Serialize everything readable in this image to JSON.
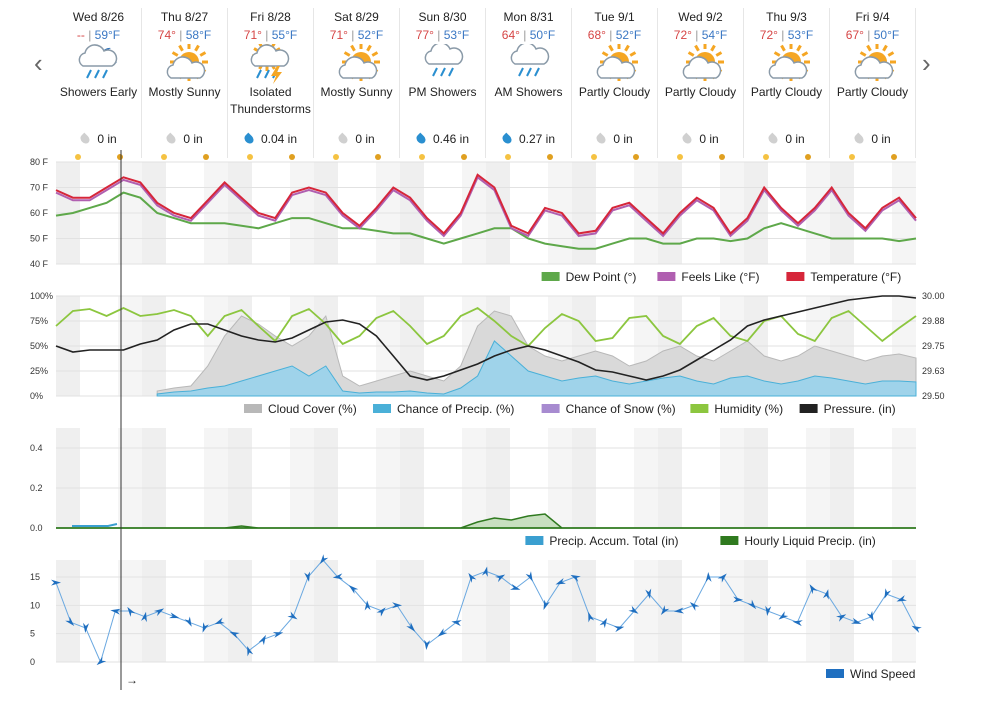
{
  "nav": {
    "prev_icon": "chevron-left-icon",
    "next_icon": "chevron-right-icon"
  },
  "days": [
    {
      "date": "Wed 8/26",
      "hi": "--",
      "lo": "59°F",
      "cond": "Showers Early",
      "icon": "cloud-moon-rain-icon",
      "precip": "0 in",
      "drop": "gray"
    },
    {
      "date": "Thu 8/27",
      "hi": "74°",
      "lo": "58°F",
      "cond": "Mostly Sunny",
      "icon": "sun-cloud-icon",
      "precip": "0 in",
      "drop": "gray"
    },
    {
      "date": "Fri 8/28",
      "hi": "71°",
      "lo": "55°F",
      "cond": "Isolated Thunderstorms",
      "icon": "thunderstorm-icon",
      "precip": "0.04 in",
      "drop": "blue"
    },
    {
      "date": "Sat 8/29",
      "hi": "71°",
      "lo": "52°F",
      "cond": "Mostly Sunny",
      "icon": "sun-cloud-icon",
      "precip": "0 in",
      "drop": "gray"
    },
    {
      "date": "Sun 8/30",
      "hi": "77°",
      "lo": "53°F",
      "cond": "PM Showers",
      "icon": "rain-cloud-icon",
      "precip": "0.46 in",
      "drop": "blue"
    },
    {
      "date": "Mon 8/31",
      "hi": "64°",
      "lo": "50°F",
      "cond": "AM Showers",
      "icon": "rain-cloud-icon",
      "precip": "0.27 in",
      "drop": "blue"
    },
    {
      "date": "Tue 9/1",
      "hi": "68°",
      "lo": "52°F",
      "cond": "Partly Cloudy",
      "icon": "sun-cloud-icon",
      "precip": "0 in",
      "drop": "gray"
    },
    {
      "date": "Wed 9/2",
      "hi": "72°",
      "lo": "54°F",
      "cond": "Partly Cloudy",
      "icon": "sun-cloud-icon",
      "precip": "0 in",
      "drop": "gray"
    },
    {
      "date": "Thu 9/3",
      "hi": "72°",
      "lo": "53°F",
      "cond": "Partly Cloudy",
      "icon": "sun-cloud-icon",
      "precip": "0 in",
      "drop": "gray"
    },
    {
      "date": "Fri 9/4",
      "hi": "67°",
      "lo": "50°F",
      "cond": "Partly Cloudy",
      "icon": "sun-cloud-icon",
      "precip": "0 in",
      "drop": "gray"
    }
  ],
  "colors": {
    "dewpoint": "#5ea84a",
    "feels": "#b05fb0",
    "temp": "#d6263a",
    "cloud": "#b8b8b8",
    "precip_chance": "#4ab0d8",
    "snow": "#a78bd0",
    "humidity": "#8cc63f",
    "pressure": "#222222",
    "accum": "#3a9fd0",
    "hourly": "#2f7a1f",
    "wind": "#1f6fc0"
  },
  "chart_data": [
    {
      "type": "line",
      "ylim": [
        40,
        80
      ],
      "yticks": [
        "40 F",
        "50 F",
        "60 F",
        "70 F",
        "80 F"
      ],
      "legend": [
        "Dew Point (°)",
        "Feels Like (°F)",
        "Temperature (°F)"
      ],
      "series": [
        {
          "name": "Temperature (°F)",
          "values": [
            69,
            66,
            66,
            70,
            74,
            72,
            64,
            60,
            58,
            65,
            72,
            66,
            60,
            58,
            68,
            70,
            68,
            60,
            55,
            62,
            70,
            66,
            58,
            52,
            60,
            75,
            70,
            55,
            52,
            62,
            60,
            52,
            53,
            62,
            64,
            58,
            52,
            60,
            66,
            62,
            52,
            58,
            70,
            62,
            56,
            62,
            70,
            60,
            54,
            62,
            66,
            58
          ]
        },
        {
          "name": "Feels Like (°F)",
          "values": [
            68,
            65,
            65,
            69,
            73,
            71,
            63,
            59,
            57,
            64,
            71,
            65,
            59,
            57,
            67,
            69,
            67,
            59,
            54,
            61,
            69,
            65,
            57,
            51,
            59,
            74,
            69,
            54,
            51,
            61,
            59,
            51,
            52,
            61,
            63,
            57,
            51,
            59,
            65,
            61,
            51,
            57,
            69,
            61,
            55,
            61,
            69,
            59,
            53,
            61,
            65,
            57
          ]
        },
        {
          "name": "Dew Point (°)",
          "values": [
            59,
            60,
            62,
            64,
            68,
            66,
            60,
            58,
            56,
            56,
            56,
            55,
            54,
            56,
            58,
            58,
            56,
            54,
            54,
            53,
            52,
            52,
            50,
            48,
            50,
            52,
            54,
            54,
            50,
            48,
            47,
            46,
            46,
            48,
            50,
            50,
            48,
            48,
            50,
            50,
            49,
            50,
            54,
            56,
            54,
            52,
            50,
            50,
            50,
            50,
            49,
            50
          ]
        }
      ]
    },
    {
      "type": "area",
      "ylim": [
        0,
        100
      ],
      "yticks": [
        "0%",
        "25%",
        "50%",
        "75%",
        "100%"
      ],
      "y2ticks": [
        "29.50",
        "29.63",
        "29.75",
        "29.88",
        "30.00"
      ],
      "legend": [
        "Cloud Cover (%)",
        "Chance of Precip. (%)",
        "Chance of Snow (%)",
        "Humidity (%)",
        "Pressure. (in)"
      ],
      "series": [
        {
          "name": "Cloud Cover (%)",
          "values": [
            null,
            null,
            null,
            null,
            null,
            null,
            5,
            8,
            10,
            30,
            60,
            80,
            72,
            60,
            50,
            60,
            80,
            20,
            10,
            15,
            20,
            25,
            20,
            15,
            30,
            70,
            85,
            80,
            50,
            40,
            35,
            40,
            45,
            40,
            30,
            35,
            45,
            50,
            40,
            35,
            45,
            55,
            40,
            35,
            40,
            50,
            45,
            40,
            35,
            40,
            42,
            38
          ]
        },
        {
          "name": "Chance of Precip. (%)",
          "values": [
            null,
            null,
            null,
            null,
            null,
            null,
            2,
            4,
            5,
            8,
            10,
            15,
            20,
            25,
            30,
            20,
            30,
            5,
            3,
            4,
            4,
            5,
            3,
            2,
            8,
            20,
            55,
            40,
            25,
            20,
            15,
            18,
            20,
            15,
            12,
            15,
            18,
            20,
            15,
            12,
            18,
            20,
            15,
            12,
            15,
            20,
            18,
            15,
            12,
            15,
            15,
            14
          ]
        },
        {
          "name": "Humidity (%)",
          "values": [
            70,
            85,
            87,
            80,
            88,
            80,
            82,
            86,
            80,
            60,
            80,
            86,
            70,
            55,
            80,
            87,
            72,
            52,
            60,
            78,
            85,
            70,
            52,
            60,
            80,
            88,
            75,
            60,
            50,
            68,
            82,
            75,
            55,
            58,
            78,
            80,
            60,
            52,
            70,
            78,
            60,
            55,
            75,
            80,
            62,
            55,
            78,
            85,
            70,
            55,
            68,
            80
          ]
        },
        {
          "name": "Pressure. (in)",
          "values": [
            29.75,
            29.72,
            29.73,
            29.73,
            29.73,
            29.76,
            29.78,
            29.83,
            29.86,
            29.86,
            29.83,
            29.8,
            29.78,
            29.77,
            29.79,
            29.83,
            29.87,
            29.88,
            29.86,
            29.8,
            29.7,
            29.6,
            29.58,
            29.6,
            29.63,
            29.66,
            29.7,
            29.73,
            29.75,
            29.73,
            29.7,
            29.67,
            29.63,
            29.62,
            29.6,
            29.58,
            29.6,
            29.63,
            29.68,
            29.73,
            29.78,
            29.85,
            29.88,
            29.9,
            29.92,
            29.94,
            29.96,
            29.98,
            29.99,
            30.0,
            30.0,
            29.99
          ]
        }
      ]
    },
    {
      "type": "area",
      "ylim": [
        0,
        0.5
      ],
      "yticks": [
        "0.0",
        "0.2",
        "0.4"
      ],
      "legend": [
        "Precip. Accum. Total (in)",
        "Hourly Liquid Precip. (in)"
      ],
      "series": [
        {
          "name": "Precip. Accum. Total (in)",
          "values": [
            0.01,
            0.01,
            0.01,
            0.01,
            0.01,
            0.02
          ]
        },
        {
          "name": "Hourly Liquid Precip. (in)",
          "values": [
            0,
            0,
            0,
            0,
            0,
            0,
            0,
            0,
            0,
            0,
            0,
            0.01,
            0,
            0,
            0,
            0,
            0,
            0,
            0,
            0,
            0,
            0,
            0,
            0,
            0,
            0.03,
            0.05,
            0.04,
            0.06,
            0.07,
            0,
            0,
            0,
            0,
            0,
            0,
            0,
            0,
            0,
            0,
            0,
            0,
            0,
            0,
            0,
            0,
            0,
            0,
            0,
            0,
            0,
            0
          ]
        }
      ]
    },
    {
      "type": "line",
      "ylim": [
        0,
        18
      ],
      "yticks": [
        "0",
        "5",
        "10",
        "15"
      ],
      "legend": [
        "Wind Speed"
      ],
      "series": [
        {
          "name": "Wind Speed",
          "values": [
            14,
            7,
            6,
            0,
            9,
            9,
            8,
            9,
            8,
            7,
            6,
            7,
            5,
            2,
            4,
            5,
            8,
            15,
            18,
            15,
            13,
            10,
            9,
            10,
            6,
            3,
            5,
            7,
            15,
            16,
            15,
            13,
            15,
            10,
            14,
            15,
            8,
            7,
            6,
            9,
            12,
            9,
            9,
            10,
            15,
            15,
            11,
            10,
            9,
            8,
            7,
            13,
            12,
            8,
            7,
            8,
            12,
            11,
            6
          ]
        }
      ]
    }
  ]
}
